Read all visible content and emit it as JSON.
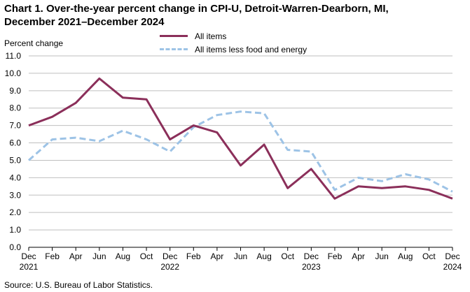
{
  "chart_data": {
    "type": "line",
    "title": "Chart 1. Over-the-year percent change in CPI-U, Detroit-Warren-Dearborn, MI, December 2021–December 2024",
    "ylabel": "Percent change",
    "xlabel": "",
    "ylim": [
      0.0,
      11.0
    ],
    "ytick_labels": [
      "0.0",
      "1.0",
      "2.0",
      "3.0",
      "4.0",
      "5.0",
      "6.0",
      "7.0",
      "8.0",
      "9.0",
      "10.0",
      "11.0"
    ],
    "x_tick_labels": [
      "Dec",
      "Feb",
      "Apr",
      "Jun",
      "Aug",
      "Oct",
      "Dec",
      "Feb",
      "Apr",
      "Jun",
      "Aug",
      "Oct",
      "Dec",
      "Feb",
      "Apr",
      "Jun",
      "Aug",
      "Oct",
      "Dec"
    ],
    "x_year_labels": [
      "2021",
      "",
      "",
      "",
      "",
      "",
      "2022",
      "",
      "",
      "",
      "",
      "",
      "2023",
      "",
      "",
      "",
      "",
      "",
      "2024"
    ],
    "grid": true,
    "legend_position": "top-center",
    "series": [
      {
        "name": "All items",
        "color": "#8B2F5A",
        "style": "solid",
        "values": [
          7.0,
          7.5,
          8.3,
          9.7,
          8.6,
          8.5,
          6.2,
          7.0,
          6.6,
          4.7,
          5.9,
          3.4,
          4.5,
          2.8,
          3.5,
          3.4,
          3.5,
          3.3,
          2.8
        ]
      },
      {
        "name": "All items less food and energy",
        "color": "#9DC3E6",
        "style": "dashed",
        "values": [
          5.0,
          6.2,
          6.3,
          6.1,
          6.7,
          6.2,
          5.5,
          6.9,
          7.6,
          7.8,
          7.7,
          5.6,
          5.5,
          3.3,
          4.0,
          3.8,
          4.2,
          3.9,
          3.2
        ]
      }
    ],
    "source": "Source: U.S. Bureau of Labor Statistics."
  }
}
